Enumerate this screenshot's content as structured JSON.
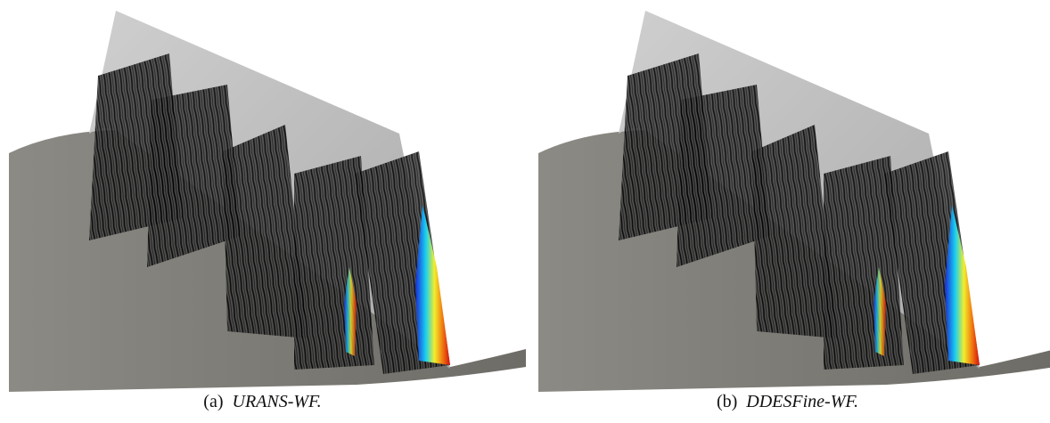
{
  "figure": {
    "panels": [
      {
        "label": "(a)",
        "caption": "URANS-WF."
      },
      {
        "label": "(b)",
        "caption": "DDESFine-WF."
      }
    ]
  }
}
